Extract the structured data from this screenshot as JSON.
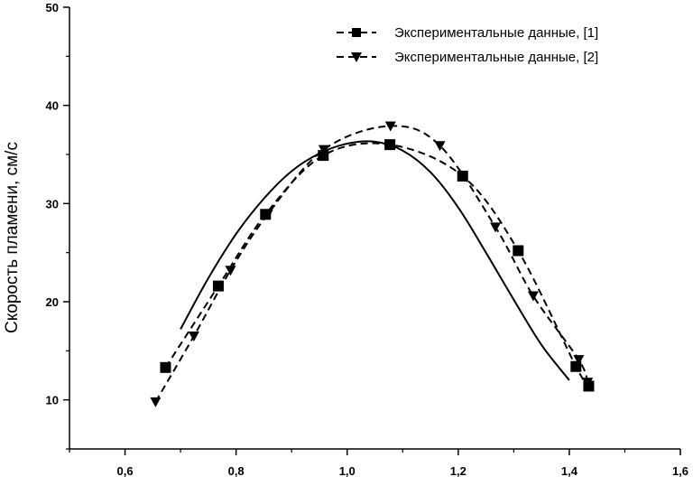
{
  "chart_data": {
    "type": "line",
    "xlabel": "",
    "ylabel": "Скорость пламени, см/с",
    "xlim": [
      0.5,
      1.6
    ],
    "ylim": [
      5,
      50
    ],
    "x_ticks": [
      "0,6",
      "0,8",
      "1,0",
      "1,2",
      "1,4",
      "1,6"
    ],
    "x_tick_values": [
      0.6,
      0.8,
      1.0,
      1.2,
      1.4,
      1.6
    ],
    "y_ticks": [
      "10",
      "20",
      "30",
      "40",
      "50"
    ],
    "y_tick_values": [
      10,
      20,
      30,
      40,
      50
    ],
    "legend_position": "top-right",
    "series": [
      {
        "name": "Экспериментальные данные, [1]",
        "marker": "square",
        "line": "dashed",
        "x": [
          0.673,
          0.768,
          0.853,
          0.957,
          1.077,
          1.208,
          1.308,
          1.412,
          1.435
        ],
        "y": [
          13.3,
          21.6,
          28.9,
          34.9,
          36.0,
          32.8,
          25.2,
          13.4,
          11.4
        ]
      },
      {
        "name": "Экспериментальные данные, [2]",
        "marker": "triangle-down",
        "line": "dashed",
        "x": [
          0.655,
          0.724,
          0.79,
          0.857,
          0.958,
          1.078,
          1.167,
          1.267,
          1.335,
          1.417,
          1.433
        ],
        "y": [
          9.8,
          16.5,
          23.2,
          28.9,
          35.5,
          37.9,
          35.9,
          27.6,
          20.6,
          14.1,
          11.8
        ]
      },
      {
        "name": "",
        "marker": "none",
        "line": "solid",
        "x": [
          0.7,
          0.75,
          0.8,
          0.85,
          0.9,
          0.95,
          1.0,
          1.05,
          1.1,
          1.15,
          1.2,
          1.25,
          1.3,
          1.35,
          1.4
        ],
        "y": [
          17.2,
          22.4,
          26.9,
          30.5,
          33.3,
          35.1,
          36.1,
          36.3,
          35.4,
          33.2,
          29.6,
          25.0,
          20.2,
          15.6,
          12.0
        ]
      }
    ]
  }
}
